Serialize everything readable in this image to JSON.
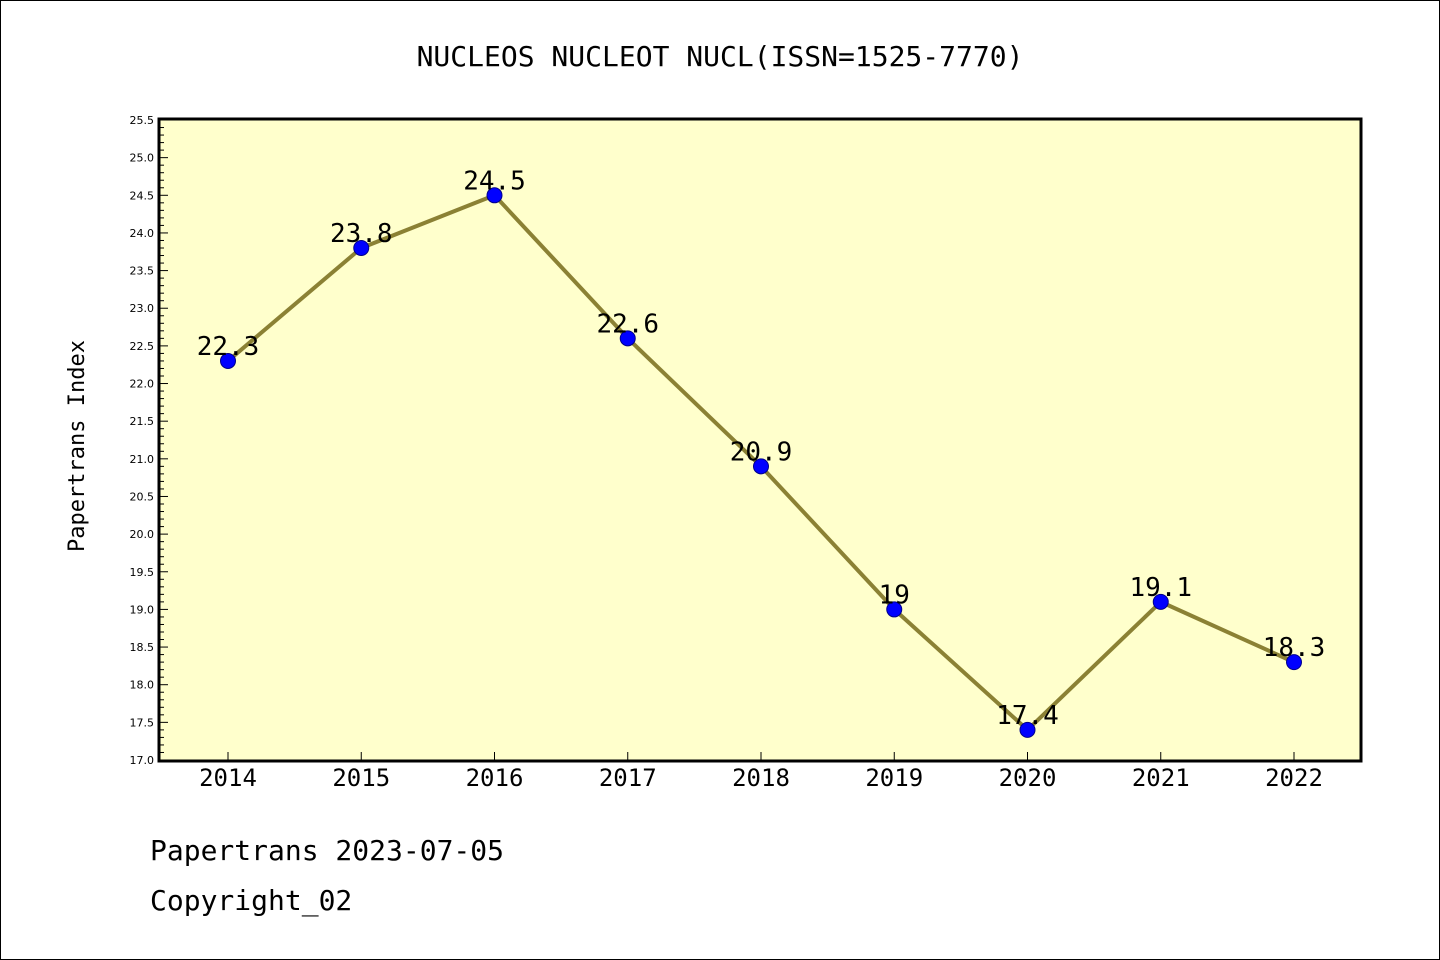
{
  "chart_data": {
    "type": "line",
    "title": "NUCLEOS NUCLEOT NUCL(ISSN=1525-7770)",
    "xlabel": "",
    "ylabel": "Papertrans Index",
    "categories": [
      "2014",
      "2015",
      "2016",
      "2017",
      "2018",
      "2019",
      "2020",
      "2021",
      "2022"
    ],
    "series": [
      {
        "values": [
          22.3,
          23.8,
          24.5,
          22.6,
          20.9,
          19,
          17.4,
          19.1,
          18.3
        ],
        "labels": [
          "22.3",
          "23.8",
          "24.5",
          "22.6",
          "20.9",
          "19",
          "17.4",
          "19.1",
          "18.3"
        ]
      }
    ],
    "ylim": [
      17.0,
      25.5
    ],
    "ytick_step": 0.5,
    "ytick_labels": [
      "17.0",
      "17.5",
      "18.0",
      "18.5",
      "19.0",
      "19.5",
      "20.0",
      "20.5",
      "21.0",
      "21.5",
      "22.0",
      "22.5",
      "23.0",
      "23.5",
      "24.0",
      "24.5",
      "25.0",
      "25.5"
    ],
    "grid": false,
    "colors": {
      "plot_background": "#FFFFCC",
      "line": "#8B8134",
      "marker": "#0000FF",
      "marker_edge": "#00008B"
    }
  },
  "footer": {
    "line1": "Papertrans 2023-07-05",
    "line2": "Copyright_02"
  }
}
